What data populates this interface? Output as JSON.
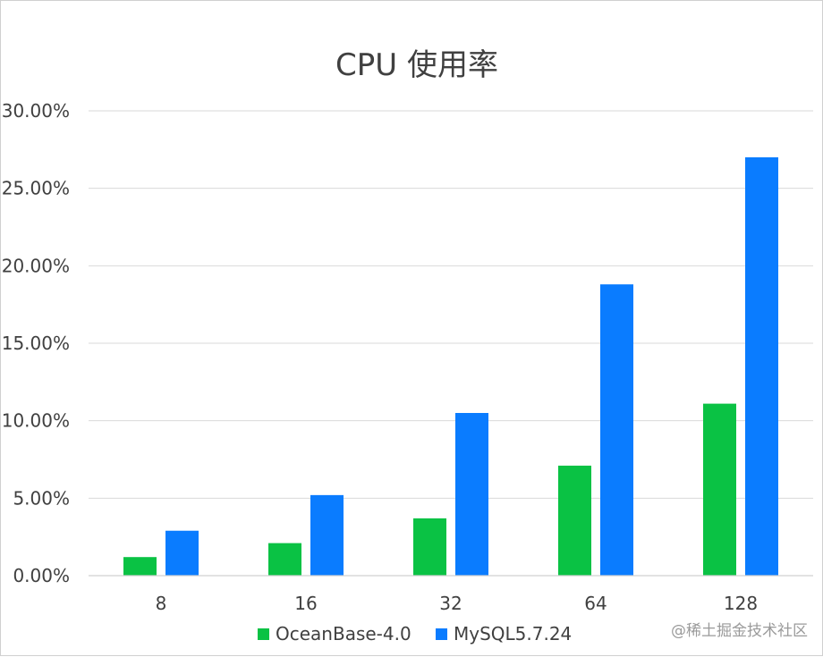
{
  "chart_data": {
    "type": "bar",
    "title": "CPU 使用率",
    "xlabel": "",
    "ylabel": "",
    "categories": [
      "8",
      "16",
      "32",
      "64",
      "128"
    ],
    "series": [
      {
        "name": "OceanBase-4.0",
        "color": "#0ac244",
        "values": [
          1.2,
          2.1,
          3.7,
          7.1,
          11.1
        ]
      },
      {
        "name": "MySQL5.7.24",
        "color": "#0a7cff",
        "values": [
          2.9,
          5.2,
          10.5,
          18.8,
          27.0
        ]
      }
    ],
    "ylim": [
      0,
      30
    ],
    "yticks": [
      "0.00%",
      "5.00%",
      "10.00%",
      "15.00%",
      "20.00%",
      "25.00%",
      "30.00%"
    ],
    "ytick_values": [
      0,
      5,
      10,
      15,
      20,
      25,
      30
    ],
    "grid": true,
    "legend_position": "bottom"
  },
  "watermark": "@稀土掘金技术社区"
}
